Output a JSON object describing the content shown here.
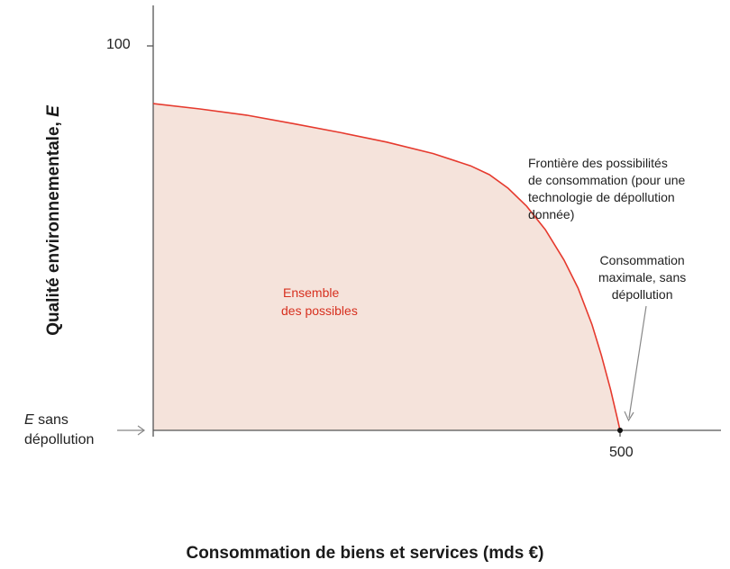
{
  "chart_data": {
    "type": "area",
    "xlabel": "Consommation de biens et services (mds €)",
    "ylabel_text": "Qualité environnementale, ",
    "ylabel_var": "E",
    "ticks": {
      "y_top": "100",
      "x_end": "500"
    },
    "frontier_points": [
      [
        0,
        85
      ],
      [
        50,
        83.6
      ],
      [
        100,
        82
      ],
      [
        150,
        79.8
      ],
      [
        200,
        77.5
      ],
      [
        250,
        75
      ],
      [
        300,
        72
      ],
      [
        340,
        68.8
      ],
      [
        360,
        66.5
      ],
      [
        380,
        63
      ],
      [
        400,
        58.3
      ],
      [
        420,
        52.2
      ],
      [
        440,
        44.3
      ],
      [
        455,
        37
      ],
      [
        470,
        27.5
      ],
      [
        480,
        19.5
      ],
      [
        490,
        10.5
      ],
      [
        497,
        3.2
      ],
      [
        500,
        0
      ]
    ],
    "colors": {
      "frontier": "#e63a2e",
      "fill": "#f5e3db",
      "axis": "#555555",
      "arrow": "#888888",
      "region_text": "#d7301f"
    }
  },
  "annotations": {
    "frontier_label": [
      "Frontière des possibilités",
      "de consommation (pour une",
      "technologie de dépollution",
      "donnée)"
    ],
    "max_label": [
      "Consommation",
      "maximale, sans",
      "dépollution"
    ],
    "region_label": [
      "Ensemble",
      "des possibles"
    ],
    "e_sans_var": "E",
    "e_sans_rest": " sans",
    "e_sans_line2": "dépollution"
  }
}
